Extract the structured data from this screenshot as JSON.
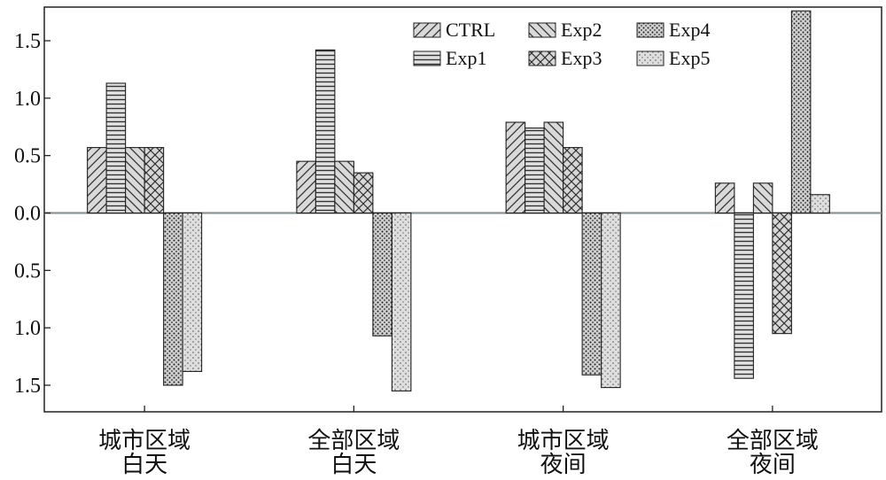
{
  "chart_data": {
    "type": "bar",
    "categories": [
      [
        "城市区域",
        "白天"
      ],
      [
        "全部区域",
        "白天"
      ],
      [
        "城市区域",
        "夜间"
      ],
      [
        "全部区域",
        "夜间"
      ]
    ],
    "series": [
      {
        "name": "CTRL",
        "values": [
          0.57,
          0.45,
          0.79,
          0.26
        ]
      },
      {
        "name": "Exp1",
        "values": [
          1.13,
          1.42,
          0.74,
          -1.44
        ]
      },
      {
        "name": "Exp2",
        "values": [
          0.57,
          0.45,
          0.79,
          0.26
        ]
      },
      {
        "name": "Exp3",
        "values": [
          0.57,
          0.35,
          0.57,
          -1.05
        ]
      },
      {
        "name": "Exp4",
        "values": [
          -1.5,
          -1.07,
          -1.41,
          1.76
        ]
      },
      {
        "name": "Exp5",
        "values": [
          -1.38,
          -1.55,
          -1.52,
          0.16
        ]
      }
    ],
    "y_ticks": [
      "1.5",
      "1.0",
      "0.5",
      "0.0",
      "0.5",
      "1.0",
      "1.5"
    ],
    "y_tick_values": [
      1.5,
      1.0,
      0.5,
      0.0,
      -0.5,
      -1.0,
      -1.5
    ],
    "ylim": [
      -1.75,
      1.9
    ],
    "legend_position": "top-right",
    "zero_line": true,
    "colors": {
      "bar_fill": "#d9d9d9",
      "bar_stroke": "#222222",
      "pattern_ink": "#333333",
      "zero_line": "#8a9599",
      "axis": "#222222"
    }
  }
}
